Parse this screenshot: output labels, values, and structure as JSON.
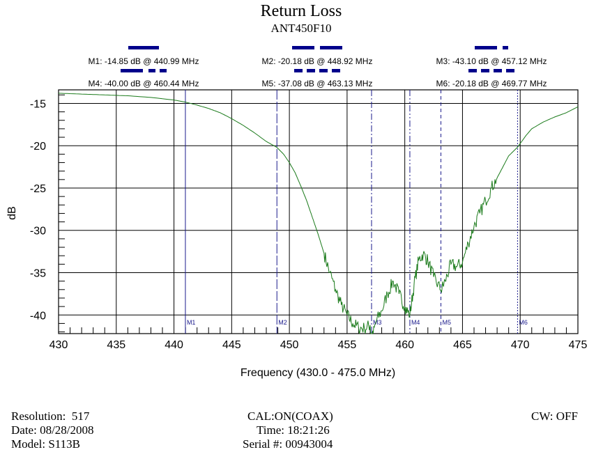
{
  "chart_data": {
    "type": "line",
    "title": "Return Loss",
    "subtitle": "ANT450F10",
    "xlabel": "Frequency (430.0 - 475.0 MHz)",
    "ylabel": "dB",
    "xlim": [
      430,
      475
    ],
    "ylim": [
      -42.2,
      -13.4
    ],
    "x_ticks": [
      430,
      435,
      440,
      445,
      450,
      455,
      460,
      465,
      470,
      475
    ],
    "y_ticks": [
      -15,
      -20,
      -25,
      -30,
      -35,
      -40
    ],
    "grid": true,
    "colors": {
      "trace": "#1a7a1a",
      "marker": "#1a1a8c",
      "legend_swatch": "#00008b"
    },
    "series": [
      {
        "x": [
          430,
          432,
          434,
          436,
          438,
          440,
          441,
          442,
          443,
          444,
          445,
          446,
          447,
          448,
          448.9,
          449.5,
          450,
          450.5,
          451,
          451.5,
          452,
          452.5,
          453,
          453.5,
          454,
          454.5,
          455,
          455.5,
          456,
          456.5,
          457,
          457.12,
          457.5,
          458,
          458.5,
          459,
          459.5,
          460,
          460.44,
          460.8,
          461.2,
          461.6,
          462,
          462.5,
          463.13,
          463.5,
          464,
          464.5,
          465,
          465.5,
          466,
          466.5,
          467,
          467.5,
          468,
          468.5,
          469,
          469.77,
          470.5,
          471,
          472,
          473,
          474,
          475
        ],
        "values": [
          -13.8,
          -13.9,
          -14.0,
          -14.1,
          -14.3,
          -14.6,
          -14.85,
          -15.2,
          -15.6,
          -16.1,
          -16.8,
          -17.6,
          -18.5,
          -19.5,
          -20.18,
          -21.0,
          -22.0,
          -23.2,
          -24.8,
          -26.5,
          -28.5,
          -30.5,
          -32.7,
          -35.0,
          -37.0,
          -38.8,
          -40.0,
          -41.0,
          -41.5,
          -41.6,
          -41.2,
          -43.1,
          -40.8,
          -39.5,
          -37.5,
          -36.0,
          -37.5,
          -39.0,
          -40.0,
          -36.5,
          -33.5,
          -32.8,
          -33.6,
          -35.5,
          -37.08,
          -36.0,
          -34.0,
          -34.3,
          -33.8,
          -31.5,
          -29.5,
          -28.0,
          -26.5,
          -25.0,
          -23.8,
          -22.5,
          -21.2,
          -20.18,
          -18.8,
          -18.0,
          -17.2,
          -16.6,
          -16.1,
          -15.4
        ]
      }
    ],
    "markers": [
      {
        "id": "M1",
        "freq": 440.99,
        "db": -14.85,
        "label": "M1: -14.85 dB @ 440.99 MHz",
        "dash": "solid"
      },
      {
        "id": "M2",
        "freq": 448.92,
        "db": -20.18,
        "label": "M2: -20.18 dB @ 448.92 MHz",
        "dash": "long"
      },
      {
        "id": "M3",
        "freq": 457.12,
        "db": -43.1,
        "label": "M3: -43.10 dB @ 457.12 MHz",
        "dash": "dashdot"
      },
      {
        "id": "M4",
        "freq": 460.44,
        "db": -40.0,
        "label": "M4: -40.00 dB @ 460.44 MHz",
        "dash": "dashdotdot"
      },
      {
        "id": "M5",
        "freq": 463.13,
        "db": -37.08,
        "label": "M5: -37.08 dB @ 463.13 MHz",
        "dash": "short"
      },
      {
        "id": "M6",
        "freq": 469.77,
        "db": -20.18,
        "label": "M6: -20.18 dB @ 469.77 MHz",
        "dash": "dot"
      }
    ]
  },
  "footer": {
    "resolution": "Resolution:  517",
    "date": "Date: 08/28/2008",
    "model": "Model: S113B",
    "cal": "CAL:ON(COAX)",
    "time": "Time: 18:21:26",
    "serial": "Serial #: 00943004",
    "cw": "CW: OFF"
  }
}
